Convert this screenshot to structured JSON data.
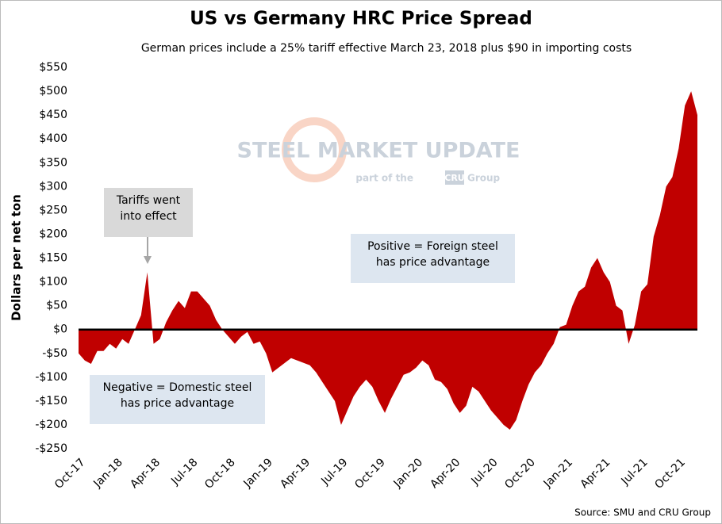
{
  "chart_data": {
    "type": "area",
    "title": "US vs Germany HRC Price Spread",
    "subtitle": "German prices include a 25% tariff effective March 23, 2018 plus $90 in importing costs",
    "y_label": "Dollars per net ton",
    "source": "Source: SMU and CRU Group",
    "watermark": [
      "STEEL MARKET UPDATE",
      "part of the",
      "CRU",
      "Group"
    ],
    "annotations": [
      "Tariffs went into effect",
      "Positive = Foreign steel has price advantage",
      "Negative = Domestic steel has price advantage"
    ],
    "color": "#c00000",
    "categories": [
      "Oct-17",
      null,
      null,
      null,
      null,
      null,
      "Jan-18",
      null,
      null,
      null,
      null,
      null,
      "Apr-18",
      null,
      null,
      null,
      null,
      null,
      "Jul-18",
      null,
      null,
      null,
      null,
      null,
      "Oct-18",
      null,
      null,
      null,
      null,
      null,
      "Jan-19",
      null,
      null,
      null,
      null,
      null,
      "Apr-19",
      null,
      null,
      null,
      null,
      null,
      "Jul-19",
      null,
      null,
      null,
      null,
      null,
      "Oct-19",
      null,
      null,
      null,
      null,
      null,
      "Jan-20",
      null,
      null,
      null,
      null,
      null,
      "Apr-20",
      null,
      null,
      null,
      null,
      null,
      "Jul-20",
      null,
      null,
      null,
      null,
      null,
      "Oct-20",
      null,
      null,
      null,
      null,
      null,
      "Jan-21",
      null,
      null,
      null,
      null,
      null,
      "Apr-21",
      null,
      null,
      null,
      null,
      null,
      "Jul-21",
      null,
      null,
      null,
      null,
      null,
      "Oct-21",
      null,
      null,
      null
    ],
    "values": [
      -50,
      -65,
      -72,
      -45,
      -45,
      -30,
      -40,
      -20,
      -30,
      0,
      30,
      120,
      -30,
      -20,
      15,
      40,
      60,
      45,
      80,
      80,
      65,
      50,
      20,
      0,
      -15,
      -30,
      -15,
      -5,
      -30,
      -25,
      -50,
      -90,
      -80,
      -70,
      -60,
      -65,
      -70,
      -75,
      -90,
      -110,
      -130,
      -150,
      -200,
      -170,
      -140,
      -120,
      -105,
      -120,
      -150,
      -175,
      -145,
      -120,
      -95,
      -90,
      -80,
      -65,
      -75,
      -105,
      -110,
      -125,
      -155,
      -175,
      -160,
      -120,
      -130,
      -150,
      -170,
      -185,
      -200,
      -210,
      -190,
      -150,
      -115,
      -90,
      -75,
      -50,
      -30,
      5,
      10,
      50,
      80,
      90,
      130,
      150,
      120,
      100,
      50,
      40,
      -30,
      10,
      80,
      95,
      195,
      240,
      300,
      320,
      380,
      470,
      500,
      450
    ],
    "ylim": [
      -250,
      550
    ],
    "yticks": [
      {
        "value": -250,
        "label": "-$250"
      },
      {
        "value": -200,
        "label": "-$200"
      },
      {
        "value": -150,
        "label": "-$150"
      },
      {
        "value": -100,
        "label": "-$100"
      },
      {
        "value": -50,
        "label": "-$50"
      },
      {
        "value": 0,
        "label": "$0"
      },
      {
        "value": 50,
        "label": "$50"
      },
      {
        "value": 100,
        "label": "$100"
      },
      {
        "value": 150,
        "label": "$150"
      },
      {
        "value": 200,
        "label": "$200"
      },
      {
        "value": 250,
        "label": "$250"
      },
      {
        "value": 300,
        "label": "$300"
      },
      {
        "value": 350,
        "label": "$350"
      },
      {
        "value": 400,
        "label": "$400"
      },
      {
        "value": 450,
        "label": "$450"
      },
      {
        "value": 500,
        "label": "$500"
      },
      {
        "value": 550,
        "label": "$550"
      }
    ],
    "grid": false
  }
}
